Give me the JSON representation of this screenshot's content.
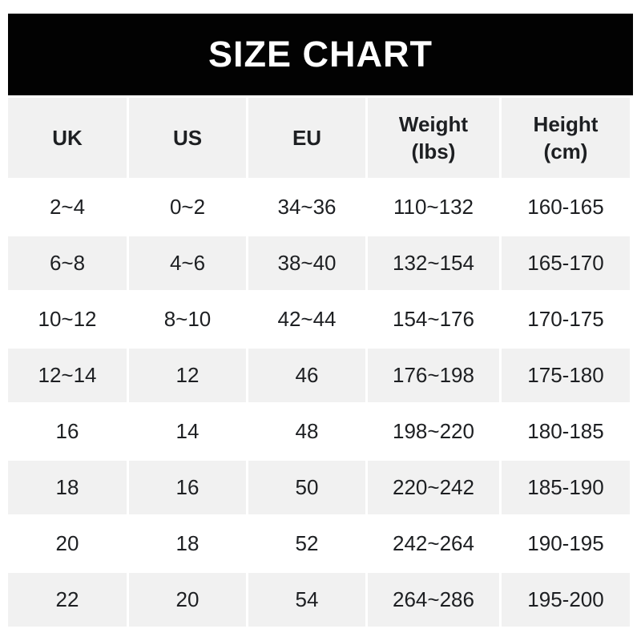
{
  "banner": {
    "title": "SIZE CHART"
  },
  "chart_data": {
    "type": "table",
    "title": "SIZE CHART",
    "columns": [
      {
        "label": "UK",
        "sub": ""
      },
      {
        "label": "US",
        "sub": ""
      },
      {
        "label": "EU",
        "sub": ""
      },
      {
        "label": "Weight",
        "sub": "(lbs)"
      },
      {
        "label": "Height",
        "sub": "(cm)"
      }
    ],
    "rows": [
      [
        "2~4",
        "0~2",
        "34~36",
        "110~132",
        "160-165"
      ],
      [
        "6~8",
        "4~6",
        "38~40",
        "132~154",
        "165-170"
      ],
      [
        "10~12",
        "8~10",
        "42~44",
        "154~176",
        "170-175"
      ],
      [
        "12~14",
        "12",
        "46",
        "176~198",
        "175-180"
      ],
      [
        "16",
        "14",
        "48",
        "198~220",
        "180-185"
      ],
      [
        "18",
        "16",
        "50",
        "220~242",
        "185-190"
      ],
      [
        "20",
        "18",
        "52",
        "242~264",
        "190-195"
      ],
      [
        "22",
        "20",
        "54",
        "264~286",
        "195-200"
      ]
    ]
  },
  "colors": {
    "banner_bg": "#020202",
    "banner_text": "#ffffff",
    "cell_alt_bg": "#f1f1f1",
    "text": "#1d1f22",
    "page_bg": "#ffffff"
  }
}
